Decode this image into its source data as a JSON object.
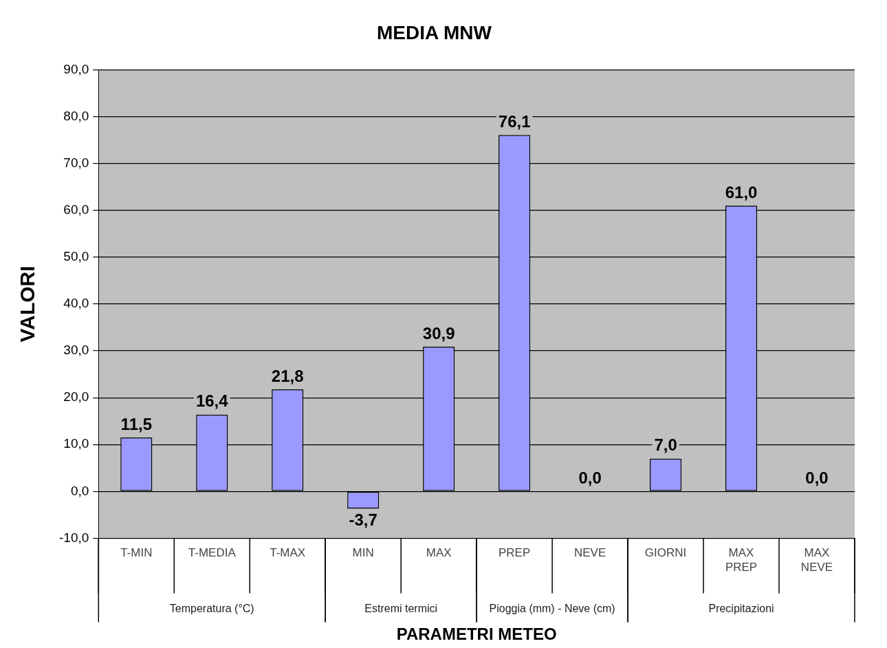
{
  "chart_data": {
    "type": "bar",
    "title": "MEDIA MNW",
    "xlabel": "PARAMETRI METEO",
    "ylabel": "VALORI",
    "categories": [
      "T-MIN",
      "T-MEDIA",
      "T-MAX",
      "MIN",
      "MAX",
      "PREP",
      "NEVE",
      "GIORNI",
      "MAX PREP",
      "MAX NEVE"
    ],
    "values": [
      11.5,
      16.4,
      21.8,
      -3.7,
      30.9,
      76.1,
      0.0,
      7.0,
      61.0,
      0.0
    ],
    "value_labels": [
      "11,5",
      "16,4",
      "21,8",
      "-3,7",
      "30,9",
      "76,1",
      "0,0",
      "7,0",
      "61,0",
      "0,0"
    ],
    "color": "#9999ff",
    "ylim": [
      -10,
      90
    ],
    "yticks": [
      {
        "value": -10,
        "label": "-10,0"
      },
      {
        "value": 0,
        "label": "0,0"
      },
      {
        "value": 10,
        "label": "10,0"
      },
      {
        "value": 20,
        "label": "20,0"
      },
      {
        "value": 30,
        "label": "30,0"
      },
      {
        "value": 40,
        "label": "40,0"
      },
      {
        "value": 50,
        "label": "50,0"
      },
      {
        "value": 60,
        "label": "60,0"
      },
      {
        "value": 70,
        "label": "70,0"
      },
      {
        "value": 80,
        "label": "80,0"
      },
      {
        "value": 90,
        "label": "90,0"
      }
    ],
    "grid": "y",
    "annotations": [
      "Temperatura (°C)",
      "Estremi termici",
      "Pioggia (mm) - Neve (cm)",
      "Precipitazioni"
    ],
    "legend": false
  }
}
